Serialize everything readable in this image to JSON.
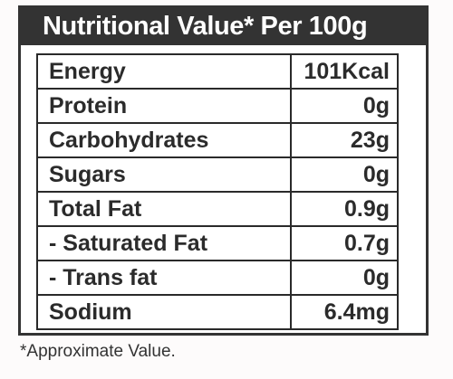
{
  "header": {
    "title": "Nutritional Value* Per 100g"
  },
  "rows": [
    {
      "label": "Energy",
      "value": "101Kcal"
    },
    {
      "label": "Protein",
      "value": "0g"
    },
    {
      "label": "Carbohydrates",
      "value": "23g"
    },
    {
      "label": "Sugars",
      "value": "0g"
    },
    {
      "label": "Total Fat",
      "value": "0.9g"
    },
    {
      "label": "- Saturated Fat",
      "value": "0.7g"
    },
    {
      "label": "- Trans fat",
      "value": "0g"
    },
    {
      "label": "Sodium",
      "value": "6.4mg"
    }
  ],
  "footnote": "*Approximate Value.",
  "colors": {
    "header_bg": "#333333",
    "header_text": "#ffffff",
    "border": "#2a2a2a",
    "text": "#2b2b2b"
  }
}
